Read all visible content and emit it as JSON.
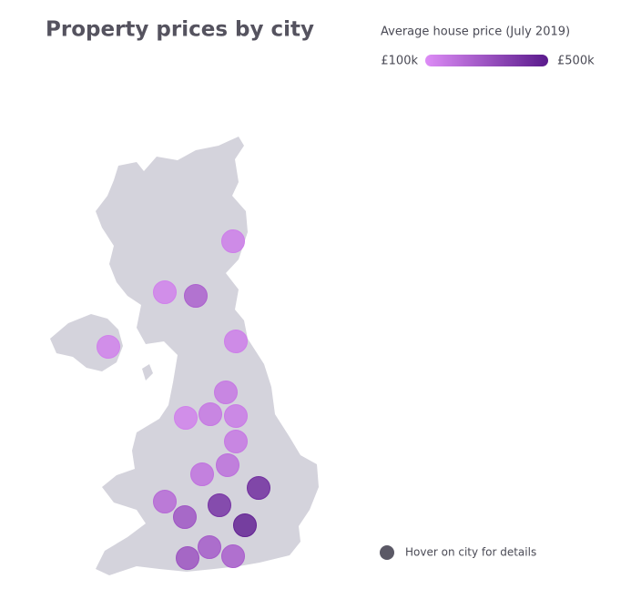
{
  "chart_data": {
    "type": "map",
    "title": "Property prices by city",
    "legend_title": "Average house price (July 2019)",
    "color_range": [
      "#dd8cf6",
      "#5a1a8c"
    ],
    "color_ticks": [
      {
        "value": 100000,
        "label": "£100k"
      },
      {
        "value": 500000,
        "label": "£500k"
      }
    ],
    "values": [
      150000,
      140000,
      250000,
      140000,
      150000,
      170000,
      140000,
      170000,
      160000,
      170000,
      200000,
      190000,
      430000,
      220000,
      410000,
      290000,
      470000,
      300000,
      270000,
      260000
    ],
    "hint": "Hover on city for details"
  }
}
